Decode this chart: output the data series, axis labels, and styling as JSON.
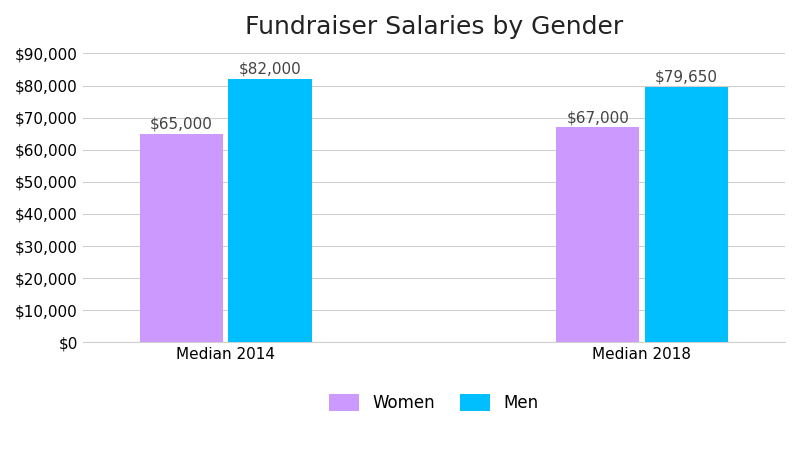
{
  "title": "Fundraiser Salaries by Gender",
  "categories": [
    "Median 2014",
    "Median 2018"
  ],
  "women_values": [
    65000,
    67000
  ],
  "men_values": [
    82000,
    79650
  ],
  "women_labels": [
    "$65,000",
    "$67,000"
  ],
  "men_labels": [
    "$82,000",
    "$79,650"
  ],
  "women_color": "#CC99FF",
  "men_color": "#00BFFF",
  "ylim": [
    0,
    90000
  ],
  "yticks": [
    0,
    10000,
    20000,
    30000,
    40000,
    50000,
    60000,
    70000,
    80000,
    90000
  ],
  "ytick_labels": [
    "$0",
    "$10,000",
    "$20,000",
    "$30,000",
    "$40,000",
    "$50,000",
    "$60,000",
    "$70,000",
    "$80,000",
    "$90,000"
  ],
  "legend_labels": [
    "Women",
    "Men"
  ],
  "bar_width": 0.32,
  "title_fontsize": 18,
  "label_fontsize": 11,
  "tick_fontsize": 11,
  "legend_fontsize": 12,
  "background_color": "#ffffff",
  "grid_color": "#d0d0d0"
}
